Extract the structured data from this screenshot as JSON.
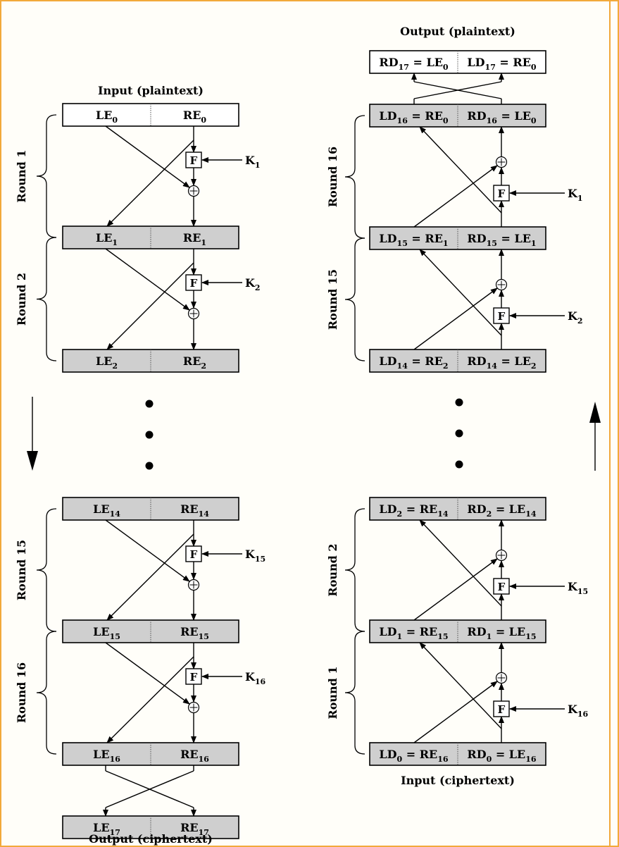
{
  "colors": {
    "frame": "#f2a93b",
    "box_fill": "#cfcfcf",
    "box_white": "#ffffff",
    "ink": "#000000"
  },
  "encryption": {
    "input_caption": "Input (plaintext)",
    "output_caption": "Output (ciphertext)",
    "rounds": [
      "Round 1",
      "Round 2",
      "Round 15",
      "Round 16"
    ],
    "keys": [
      "1",
      "2",
      "15",
      "16"
    ],
    "f_label": "F",
    "registers": [
      {
        "left": [
          "LE",
          "0"
        ],
        "right": [
          "RE",
          "0"
        ]
      },
      {
        "left": [
          "LE",
          "1"
        ],
        "right": [
          "RE",
          "1"
        ]
      },
      {
        "left": [
          "LE",
          "2"
        ],
        "right": [
          "RE",
          "2"
        ]
      },
      {
        "left": [
          "LE",
          "14"
        ],
        "right": [
          "RE",
          "14"
        ]
      },
      {
        "left": [
          "LE",
          "15"
        ],
        "right": [
          "RE",
          "15"
        ]
      },
      {
        "left": [
          "LE",
          "16"
        ],
        "right": [
          "RE",
          "16"
        ]
      },
      {
        "left": [
          "LE",
          "17"
        ],
        "right": [
          "RE",
          "17"
        ]
      }
    ]
  },
  "decryption": {
    "output_caption": "Output (plaintext)",
    "input_caption": "Input (ciphertext)",
    "rounds": [
      "Round 16",
      "Round 15",
      "Round 2",
      "Round 1"
    ],
    "keys": [
      "1",
      "2",
      "15",
      "16"
    ],
    "f_label": "F",
    "registers": [
      {
        "left": [
          "RD",
          "17",
          "LE",
          "0"
        ],
        "right": [
          "LD",
          "17",
          "RE",
          "0"
        ]
      },
      {
        "left": [
          "LD",
          "16",
          "RE",
          "0"
        ],
        "right": [
          "RD",
          "16",
          "LE",
          "0"
        ]
      },
      {
        "left": [
          "LD",
          "15",
          "RE",
          "1"
        ],
        "right": [
          "RD",
          "15",
          "LE",
          "1"
        ]
      },
      {
        "left": [
          "LD",
          "14",
          "RE",
          "2"
        ],
        "right": [
          "RD",
          "14",
          "LE",
          "2"
        ]
      },
      {
        "left": [
          "LD",
          "2",
          "RE",
          "14"
        ],
        "right": [
          "RD",
          "2",
          "LE",
          "14"
        ]
      },
      {
        "left": [
          "LD",
          "1",
          "RE",
          "15"
        ],
        "right": [
          "RD",
          "1",
          "LE",
          "15"
        ]
      },
      {
        "left": [
          "LD",
          "0",
          "RE",
          "16"
        ],
        "right": [
          "RD",
          "0",
          "LE",
          "16"
        ]
      }
    ]
  },
  "key_prefix": "K"
}
